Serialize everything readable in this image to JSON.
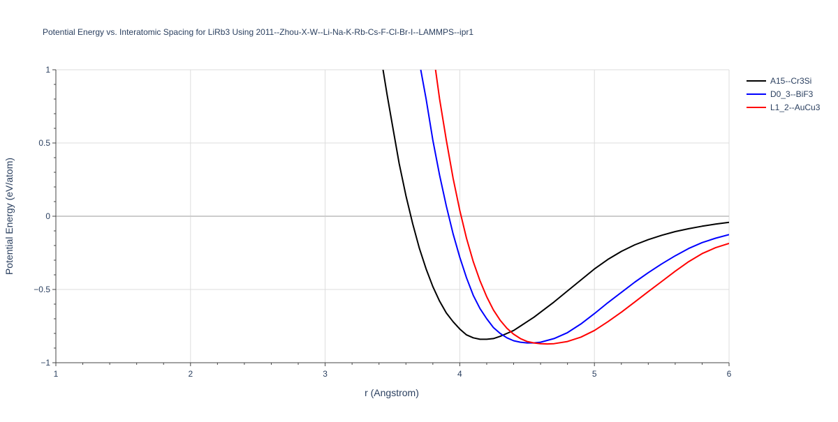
{
  "chart_data": {
    "type": "line",
    "title": "Potential Energy vs. Interatomic Spacing for LiRb3 Using 2011--Zhou-X-W--Li-Na-K-Rb-Cs-F-Cl-Br-I--LAMMPS--ipr1",
    "xlabel": "r (Angstrom)",
    "ylabel": "Potential Energy (eV/atom)",
    "xlim": [
      1,
      6
    ],
    "ylim": [
      -1,
      1
    ],
    "x_ticks": [
      1,
      2,
      3,
      4,
      5,
      6
    ],
    "y_ticks": [
      -1,
      -0.5,
      0,
      0.5,
      1
    ],
    "x_tick_labels": [
      "1",
      "2",
      "3",
      "4",
      "5",
      "6"
    ],
    "y_tick_labels": [
      "−1",
      "−0.5",
      "0",
      "0.5",
      "1"
    ],
    "grid": true,
    "legend_position": "top-right, outside plot",
    "series": [
      {
        "name": "A15--Cr3Si",
        "color": "#000000",
        "x": [
          3.43,
          3.46,
          3.5,
          3.55,
          3.6,
          3.65,
          3.7,
          3.75,
          3.8,
          3.85,
          3.9,
          3.95,
          4.0,
          4.05,
          4.1,
          4.15,
          4.2,
          4.25,
          4.3,
          4.35,
          4.4,
          4.45,
          4.5,
          4.55,
          4.6,
          4.7,
          4.8,
          4.9,
          5.0,
          5.1,
          5.2,
          5.3,
          5.4,
          5.5,
          5.6,
          5.7,
          5.8,
          5.9,
          6.0
        ],
        "y": [
          1.0,
          0.83,
          0.62,
          0.36,
          0.14,
          -0.05,
          -0.22,
          -0.36,
          -0.48,
          -0.58,
          -0.66,
          -0.72,
          -0.77,
          -0.81,
          -0.83,
          -0.84,
          -0.84,
          -0.835,
          -0.82,
          -0.8,
          -0.78,
          -0.75,
          -0.72,
          -0.69,
          -0.655,
          -0.585,
          -0.51,
          -0.435,
          -0.36,
          -0.295,
          -0.24,
          -0.195,
          -0.16,
          -0.13,
          -0.105,
          -0.085,
          -0.068,
          -0.054,
          -0.042
        ]
      },
      {
        "name": "D0_3--BiF3",
        "color": "#0000ff",
        "x": [
          3.71,
          3.75,
          3.8,
          3.85,
          3.9,
          3.95,
          4.0,
          4.05,
          4.1,
          4.15,
          4.2,
          4.25,
          4.3,
          4.35,
          4.4,
          4.45,
          4.5,
          4.55,
          4.6,
          4.7,
          4.8,
          4.9,
          5.0,
          5.1,
          5.2,
          5.3,
          5.4,
          5.5,
          5.6,
          5.7,
          5.8,
          5.9,
          6.0
        ],
        "y": [
          1.0,
          0.8,
          0.52,
          0.28,
          0.07,
          -0.12,
          -0.28,
          -0.42,
          -0.54,
          -0.63,
          -0.7,
          -0.76,
          -0.8,
          -0.83,
          -0.85,
          -0.86,
          -0.865,
          -0.865,
          -0.86,
          -0.835,
          -0.795,
          -0.735,
          -0.665,
          -0.59,
          -0.52,
          -0.45,
          -0.385,
          -0.325,
          -0.27,
          -0.22,
          -0.18,
          -0.15,
          -0.125
        ]
      },
      {
        "name": "L1_2--AuCu3",
        "color": "#ff0000",
        "x": [
          3.82,
          3.85,
          3.9,
          3.95,
          4.0,
          4.05,
          4.1,
          4.15,
          4.2,
          4.25,
          4.3,
          4.35,
          4.4,
          4.45,
          4.5,
          4.55,
          4.6,
          4.65,
          4.7,
          4.8,
          4.9,
          5.0,
          5.1,
          5.2,
          5.3,
          5.4,
          5.5,
          5.6,
          5.7,
          5.8,
          5.9,
          6.0
        ],
        "y": [
          1.0,
          0.8,
          0.52,
          0.26,
          0.04,
          -0.15,
          -0.31,
          -0.44,
          -0.55,
          -0.64,
          -0.71,
          -0.765,
          -0.805,
          -0.835,
          -0.855,
          -0.865,
          -0.87,
          -0.872,
          -0.87,
          -0.855,
          -0.825,
          -0.78,
          -0.72,
          -0.655,
          -0.585,
          -0.515,
          -0.445,
          -0.375,
          -0.31,
          -0.255,
          -0.215,
          -0.185
        ]
      }
    ]
  }
}
